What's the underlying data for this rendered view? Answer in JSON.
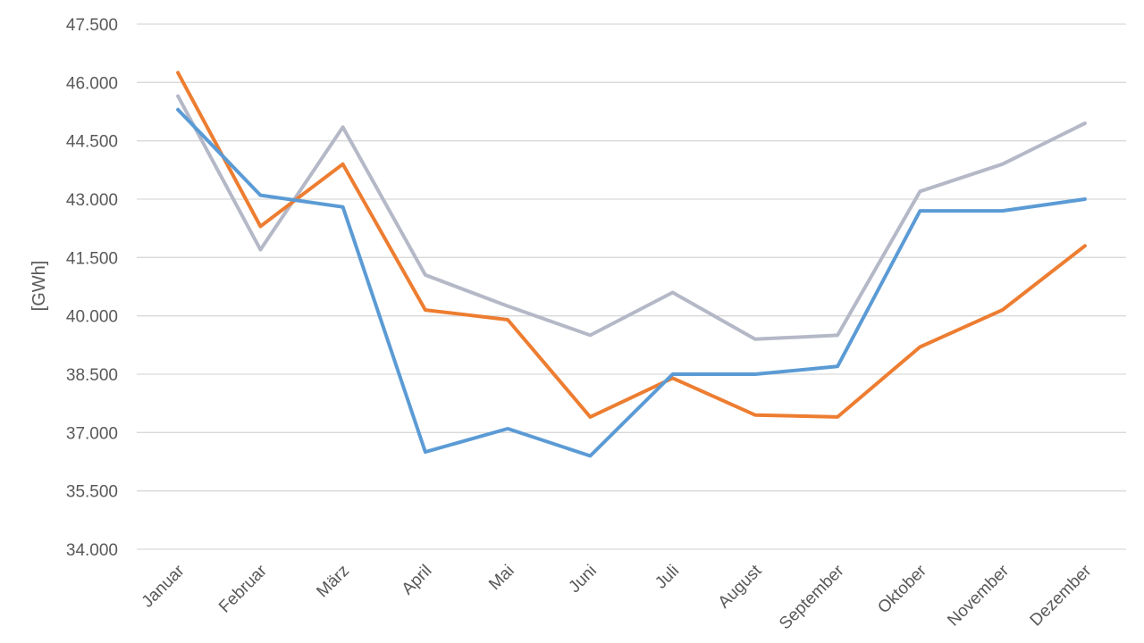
{
  "chart_data": {
    "type": "line",
    "title": "",
    "xlabel": "",
    "ylabel": "[GWh]",
    "ylim": [
      34000,
      47500
    ],
    "ytick_step": 1500,
    "y_ticks": [
      "34.000",
      "35.500",
      "37.000",
      "38.500",
      "40.000",
      "41.500",
      "43.000",
      "44.500",
      "46.000",
      "47.500"
    ],
    "grid": true,
    "legend": "none",
    "categories": [
      "Januar",
      "Februar",
      "März",
      "April",
      "Mai",
      "Juni",
      "Juli",
      "August",
      "September",
      "Oktober",
      "November",
      "Dezember"
    ],
    "series": [
      {
        "color": "#5b9bd5",
        "values": [
          45300,
          43100,
          42800,
          36500,
          37100,
          36400,
          38500,
          38500,
          38700,
          42700,
          42700,
          43000
        ]
      },
      {
        "color": "#ed7d31",
        "values": [
          46250,
          42300,
          43900,
          40150,
          39900,
          37400,
          38400,
          37450,
          37400,
          39200,
          40150,
          41800
        ]
      },
      {
        "color": "#b4b8c7",
        "values": [
          45650,
          41700,
          44850,
          41050,
          40250,
          39500,
          40600,
          39400,
          39500,
          43200,
          43900,
          44950
        ]
      }
    ]
  }
}
